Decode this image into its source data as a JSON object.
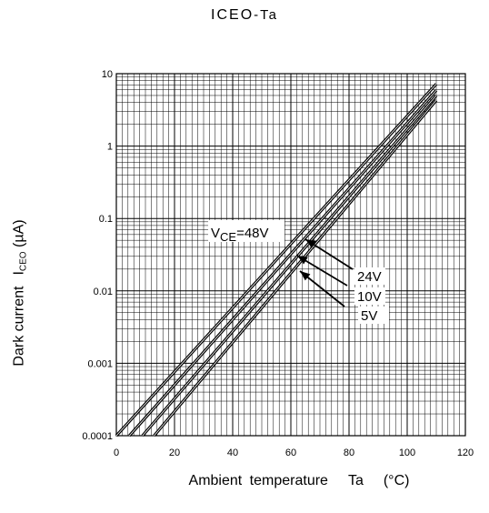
{
  "chart_data": {
    "type": "line",
    "title": "ICEO-Ta",
    "title_parts": {
      "main": "ICEO",
      "suffix": "-Ta"
    },
    "xlabel": "Ambient temperature Ta (°C)",
    "xlabel_parts": {
      "name": "Ambient temperature",
      "symbol": "Ta",
      "unit": "(°C)"
    },
    "ylabel": "Dark current ICEO (µA)",
    "ylabel_parts": {
      "name": "Dark current",
      "symbol_main": "I",
      "symbol_sub": "CEO",
      "unit": "(µA)"
    },
    "x_scale": "linear",
    "y_scale": "log",
    "xlim": [
      0,
      120
    ],
    "ylim": [
      0.0001,
      10
    ],
    "x_ticks": [
      0,
      20,
      40,
      60,
      80,
      100,
      120
    ],
    "x_tick_labels": [
      "0",
      "20",
      "40",
      "60",
      "80",
      "100",
      "120"
    ],
    "y_ticks": [
      0.0001,
      0.001,
      0.01,
      0.1,
      1,
      10
    ],
    "y_tick_labels": [
      "0.0001",
      "0.001",
      "0.01",
      "0.1",
      "1",
      "10"
    ],
    "grid": true,
    "grid_style": "dense (minor every 2 °C on x, log minor lines on y)",
    "line_color": "#000000",
    "series": [
      {
        "name": "VCE=48V",
        "x": [
          0,
          110
        ],
        "y": [
          0.0001,
          7.2
        ]
      },
      {
        "name": "24V",
        "x": [
          4.5,
          110
        ],
        "y": [
          0.0001,
          5.9
        ]
      },
      {
        "name": "10V",
        "x": [
          9,
          110
        ],
        "y": [
          0.0001,
          5.0
        ]
      },
      {
        "name": "5V",
        "x": [
          13,
          110
        ],
        "y": [
          0.0001,
          4.3
        ]
      }
    ],
    "annotations": [
      {
        "text_main": "V",
        "text_sub": "CE",
        "text_rest": "=48V"
      },
      {
        "text": "24V"
      },
      {
        "text": "10V"
      },
      {
        "text": "5V"
      }
    ]
  }
}
